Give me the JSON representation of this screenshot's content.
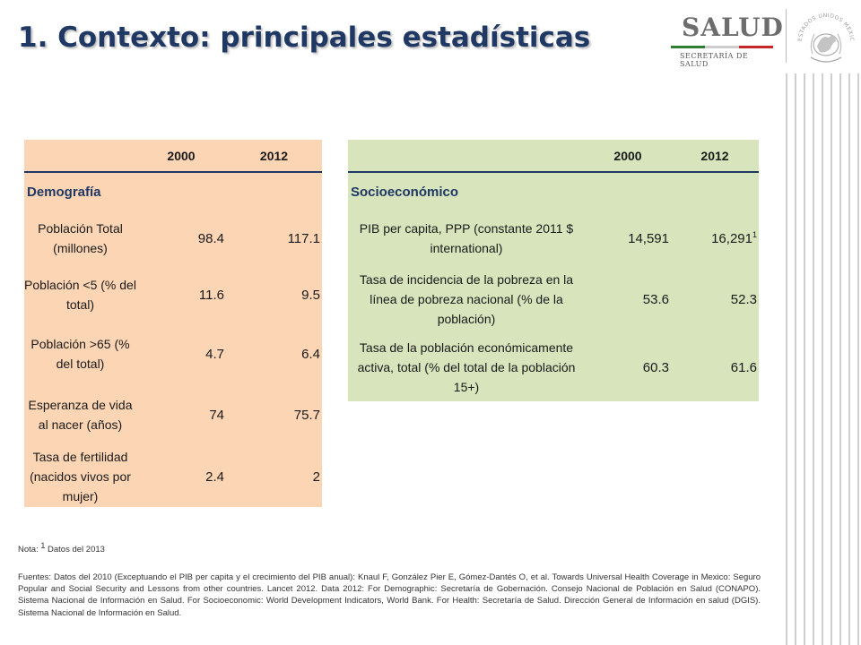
{
  "title": "1. Contexto: principales estadísticas",
  "logo": {
    "word": "SALUD",
    "subtitle": "SECRETARÍA DE SALUD",
    "colors": {
      "green": "#2e7d32",
      "white": "#cccccc",
      "red": "#c62828"
    }
  },
  "seal": {
    "icon": "mexico-coat-of-arms-icon",
    "text": "ESTADOS UNIDOS MEXICANOS"
  },
  "demografia": {
    "columns": [
      "",
      "2000",
      "2012"
    ],
    "section": "Demografía",
    "rows": [
      {
        "label": "Población Total (millones)",
        "v2000": "98.4",
        "v2012": "117.1"
      },
      {
        "label": "Población <5 (% del total)",
        "v2000": "11.6",
        "v2012": "9.5"
      },
      {
        "label": "Población >65 (% del total)",
        "v2000": "4.7",
        "v2012": "6.4"
      },
      {
        "label": "Esperanza de vida al nacer (años)",
        "v2000": "74",
        "v2012": "75.7"
      },
      {
        "label": "Tasa de fertilidad (nacidos vivos por mujer)",
        "v2000": "2.4",
        "v2012": "2"
      }
    ],
    "bg_color": "#fcd5b4"
  },
  "socioeconomico": {
    "columns": [
      "",
      "2000",
      "2012"
    ],
    "section": "Socioeconómico",
    "rows": [
      {
        "label": "PIB per capita, PPP (constante 2011 $ international)",
        "v2000": "14,591",
        "v2012": "16,291",
        "sup": "1"
      },
      {
        "label": "Tasa de incidencia de la pobreza en la línea de pobreza nacional (% de la población)",
        "v2000": "53.6",
        "v2012": "52.3"
      },
      {
        "label": "Tasa de la población económicamente activa, total (% del total de la población 15+)",
        "v2000": "60.3",
        "v2012": "61.6"
      }
    ],
    "bg_color": "#d7e4bc"
  },
  "note": {
    "prefix": "Nota: ",
    "sup": "1",
    "text": " Datos del 2013"
  },
  "sources": "Fuentes: Datos del 2010 (Exceptuando el PIB per capita y el crecimiento del PIB anual): Knaul F, González Pier E, Gómez-Dantés O, et al. Towards Universal Health Coverage in Mexico: Seguro Popular and Social Security and Lessons from other countries. Lancet 2012. Data 2012: For Demographic: Secretaría de Gobernación. Consejo Nacional de Población en Salud (CONAPO). Sistema Nacional de Información en Salud. For Socioeconomic: World Development Indicators, World Bank. For Health: Secretaría de Salud. Dirección General de Información en salud (DGIS). Sistema Nacional de Información en Salud."
}
